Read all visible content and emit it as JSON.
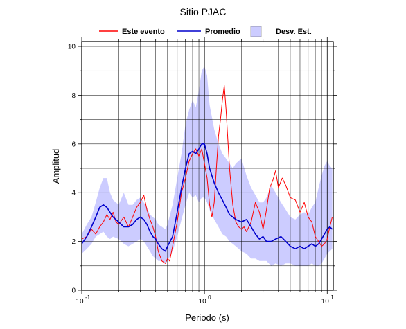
{
  "chart_data": {
    "type": "line",
    "title": "Sitio PJAC",
    "xlabel": "Periodo (s)",
    "ylabel": "Amplitud",
    "xscale": "log",
    "xlim": [
      0.1,
      11.2
    ],
    "ylim": [
      0,
      10.2
    ],
    "grid": true,
    "legend_position": "top",
    "x_ticks": [
      {
        "value": 0.1,
        "base": "10",
        "exp": "-1"
      },
      {
        "value": 1,
        "base": "10",
        "exp": "0"
      },
      {
        "value": 10,
        "base": "10",
        "exp": "1"
      }
    ],
    "y_ticks": [
      0,
      2,
      4,
      6,
      8,
      10
    ],
    "legend": [
      {
        "label": "Este evento",
        "kind": "line",
        "color": "#ff0000"
      },
      {
        "label": "Promedio",
        "kind": "line",
        "color": "#0000cc"
      },
      {
        "label": "Desv. Est.",
        "kind": "band",
        "color": "#ccccff"
      }
    ],
    "series": [
      {
        "name": "Este evento",
        "color": "#ff0000",
        "points": [
          [
            0.1,
            2.1
          ],
          [
            0.11,
            2.2
          ],
          [
            0.12,
            2.5
          ],
          [
            0.13,
            2.3
          ],
          [
            0.14,
            2.6
          ],
          [
            0.15,
            2.8
          ],
          [
            0.16,
            3.1
          ],
          [
            0.17,
            2.9
          ],
          [
            0.18,
            3.2
          ],
          [
            0.19,
            2.8
          ],
          [
            0.2,
            2.7
          ],
          [
            0.22,
            3.0
          ],
          [
            0.24,
            2.6
          ],
          [
            0.26,
            3.0
          ],
          [
            0.28,
            3.4
          ],
          [
            0.3,
            3.6
          ],
          [
            0.32,
            3.9
          ],
          [
            0.34,
            3.3
          ],
          [
            0.36,
            2.9
          ],
          [
            0.38,
            2.6
          ],
          [
            0.4,
            2.2
          ],
          [
            0.42,
            1.6
          ],
          [
            0.45,
            1.2
          ],
          [
            0.48,
            1.1
          ],
          [
            0.5,
            1.3
          ],
          [
            0.52,
            1.2
          ],
          [
            0.55,
            1.8
          ],
          [
            0.6,
            2.8
          ],
          [
            0.65,
            4.0
          ],
          [
            0.7,
            4.6
          ],
          [
            0.75,
            5.3
          ],
          [
            0.8,
            5.6
          ],
          [
            0.85,
            5.8
          ],
          [
            0.9,
            5.5
          ],
          [
            0.95,
            5.8
          ],
          [
            1.0,
            5.2
          ],
          [
            1.05,
            4.6
          ],
          [
            1.1,
            3.5
          ],
          [
            1.15,
            3.0
          ],
          [
            1.2,
            3.6
          ],
          [
            1.25,
            5.0
          ],
          [
            1.3,
            6.3
          ],
          [
            1.35,
            7.0
          ],
          [
            1.4,
            7.8
          ],
          [
            1.45,
            8.4
          ],
          [
            1.5,
            7.4
          ],
          [
            1.6,
            5.0
          ],
          [
            1.7,
            3.5
          ],
          [
            1.8,
            2.8
          ],
          [
            1.9,
            2.6
          ],
          [
            2.0,
            2.5
          ],
          [
            2.1,
            2.6
          ],
          [
            2.2,
            2.4
          ],
          [
            2.4,
            2.8
          ],
          [
            2.6,
            3.6
          ],
          [
            2.8,
            3.2
          ],
          [
            3.0,
            2.5
          ],
          [
            3.2,
            3.3
          ],
          [
            3.4,
            4.2
          ],
          [
            3.6,
            4.5
          ],
          [
            3.8,
            4.9
          ],
          [
            4.0,
            4.2
          ],
          [
            4.3,
            4.6
          ],
          [
            4.6,
            4.3
          ],
          [
            5.0,
            3.8
          ],
          [
            5.5,
            3.7
          ],
          [
            6.0,
            3.2
          ],
          [
            6.5,
            3.6
          ],
          [
            7.0,
            3.0
          ],
          [
            7.5,
            2.8
          ],
          [
            8.0,
            2.2
          ],
          [
            8.5,
            2.0
          ],
          [
            9.0,
            1.8
          ],
          [
            9.5,
            1.9
          ],
          [
            10.0,
            2.1
          ],
          [
            10.5,
            2.6
          ],
          [
            11.0,
            3.0
          ]
        ]
      },
      {
        "name": "Promedio",
        "color": "#0000cc",
        "points": [
          [
            0.1,
            1.9
          ],
          [
            0.11,
            2.2
          ],
          [
            0.12,
            2.6
          ],
          [
            0.13,
            3.0
          ],
          [
            0.14,
            3.4
          ],
          [
            0.15,
            3.5
          ],
          [
            0.16,
            3.4
          ],
          [
            0.17,
            3.2
          ],
          [
            0.18,
            3.0
          ],
          [
            0.2,
            2.8
          ],
          [
            0.22,
            2.6
          ],
          [
            0.24,
            2.6
          ],
          [
            0.26,
            2.7
          ],
          [
            0.28,
            2.9
          ],
          [
            0.3,
            3.0
          ],
          [
            0.32,
            2.9
          ],
          [
            0.34,
            2.7
          ],
          [
            0.36,
            2.4
          ],
          [
            0.38,
            2.2
          ],
          [
            0.4,
            2.1
          ],
          [
            0.42,
            1.9
          ],
          [
            0.45,
            1.7
          ],
          [
            0.48,
            1.6
          ],
          [
            0.5,
            1.8
          ],
          [
            0.55,
            2.2
          ],
          [
            0.6,
            3.2
          ],
          [
            0.65,
            4.2
          ],
          [
            0.7,
            5.0
          ],
          [
            0.75,
            5.6
          ],
          [
            0.8,
            5.7
          ],
          [
            0.85,
            5.6
          ],
          [
            0.9,
            5.8
          ],
          [
            0.95,
            6.0
          ],
          [
            1.0,
            6.0
          ],
          [
            1.05,
            5.6
          ],
          [
            1.1,
            5.0
          ],
          [
            1.2,
            4.4
          ],
          [
            1.3,
            4.0
          ],
          [
            1.4,
            3.7
          ],
          [
            1.5,
            3.4
          ],
          [
            1.6,
            3.1
          ],
          [
            1.7,
            3.0
          ],
          [
            1.8,
            2.9
          ],
          [
            2.0,
            2.8
          ],
          [
            2.2,
            2.9
          ],
          [
            2.4,
            2.6
          ],
          [
            2.6,
            2.3
          ],
          [
            2.8,
            2.1
          ],
          [
            3.0,
            2.2
          ],
          [
            3.2,
            2.0
          ],
          [
            3.5,
            2.0
          ],
          [
            3.8,
            2.1
          ],
          [
            4.2,
            2.2
          ],
          [
            4.6,
            2.0
          ],
          [
            5.0,
            1.8
          ],
          [
            5.5,
            1.7
          ],
          [
            6.0,
            1.8
          ],
          [
            6.5,
            1.7
          ],
          [
            7.0,
            1.8
          ],
          [
            7.5,
            1.9
          ],
          [
            8.0,
            1.8
          ],
          [
            8.5,
            1.9
          ],
          [
            9.0,
            2.1
          ],
          [
            9.5,
            2.3
          ],
          [
            10.0,
            2.5
          ],
          [
            10.5,
            2.6
          ],
          [
            11.0,
            2.5
          ]
        ]
      }
    ],
    "band": {
      "name": "Desv. Est.",
      "color": "#ccccff",
      "upper": [
        [
          0.1,
          2.3
        ],
        [
          0.11,
          2.7
        ],
        [
          0.12,
          3.0
        ],
        [
          0.13,
          3.6
        ],
        [
          0.14,
          4.2
        ],
        [
          0.15,
          4.6
        ],
        [
          0.16,
          4.6
        ],
        [
          0.17,
          4.0
        ],
        [
          0.18,
          3.7
        ],
        [
          0.2,
          3.5
        ],
        [
          0.22,
          4.0
        ],
        [
          0.24,
          3.5
        ],
        [
          0.26,
          3.5
        ],
        [
          0.28,
          3.7
        ],
        [
          0.3,
          3.8
        ],
        [
          0.32,
          3.6
        ],
        [
          0.34,
          3.4
        ],
        [
          0.36,
          3.1
        ],
        [
          0.38,
          3.0
        ],
        [
          0.4,
          2.9
        ],
        [
          0.42,
          2.7
        ],
        [
          0.45,
          2.6
        ],
        [
          0.48,
          2.5
        ],
        [
          0.5,
          2.7
        ],
        [
          0.55,
          3.5
        ],
        [
          0.6,
          4.6
        ],
        [
          0.65,
          5.6
        ],
        [
          0.7,
          6.8
        ],
        [
          0.75,
          7.4
        ],
        [
          0.8,
          7.8
        ],
        [
          0.85,
          7.5
        ],
        [
          0.9,
          8.2
        ],
        [
          0.95,
          9.0
        ],
        [
          1.0,
          9.2
        ],
        [
          1.05,
          8.8
        ],
        [
          1.1,
          7.6
        ],
        [
          1.2,
          6.6
        ],
        [
          1.3,
          6.0
        ],
        [
          1.4,
          5.6
        ],
        [
          1.5,
          5.4
        ],
        [
          1.6,
          5.2
        ],
        [
          1.7,
          5.0
        ],
        [
          1.8,
          5.2
        ],
        [
          2.0,
          5.4
        ],
        [
          2.2,
          4.7
        ],
        [
          2.4,
          4.2
        ],
        [
          2.6,
          3.9
        ],
        [
          2.8,
          3.6
        ],
        [
          3.0,
          3.6
        ],
        [
          3.2,
          3.8
        ],
        [
          3.5,
          4.3
        ],
        [
          3.8,
          4.0
        ],
        [
          4.2,
          3.6
        ],
        [
          4.6,
          3.3
        ],
        [
          5.0,
          3.0
        ],
        [
          5.5,
          2.9
        ],
        [
          6.0,
          3.1
        ],
        [
          6.5,
          3.2
        ],
        [
          7.0,
          3.1
        ],
        [
          7.5,
          3.4
        ],
        [
          8.0,
          3.6
        ],
        [
          8.5,
          4.2
        ],
        [
          9.0,
          4.7
        ],
        [
          9.5,
          5.1
        ],
        [
          10.0,
          5.3
        ],
        [
          10.5,
          5.1
        ],
        [
          11.0,
          5.0
        ]
      ],
      "lower": [
        [
          0.1,
          1.5
        ],
        [
          0.11,
          1.7
        ],
        [
          0.12,
          1.9
        ],
        [
          0.13,
          2.2
        ],
        [
          0.14,
          2.3
        ],
        [
          0.15,
          2.4
        ],
        [
          0.16,
          2.2
        ],
        [
          0.17,
          2.1
        ],
        [
          0.18,
          2.2
        ],
        [
          0.2,
          2.1
        ],
        [
          0.22,
          1.9
        ],
        [
          0.24,
          1.8
        ],
        [
          0.26,
          1.9
        ],
        [
          0.28,
          2.0
        ],
        [
          0.3,
          2.1
        ],
        [
          0.32,
          2.0
        ],
        [
          0.34,
          1.8
        ],
        [
          0.36,
          1.6
        ],
        [
          0.38,
          1.4
        ],
        [
          0.4,
          1.3
        ],
        [
          0.42,
          1.2
        ],
        [
          0.45,
          1.2
        ],
        [
          0.48,
          1.1
        ],
        [
          0.5,
          1.2
        ],
        [
          0.55,
          1.6
        ],
        [
          0.6,
          2.2
        ],
        [
          0.65,
          2.9
        ],
        [
          0.7,
          3.5
        ],
        [
          0.75,
          4.0
        ],
        [
          0.8,
          3.8
        ],
        [
          0.85,
          3.9
        ],
        [
          0.9,
          3.6
        ],
        [
          0.95,
          3.8
        ],
        [
          1.0,
          3.8
        ],
        [
          1.05,
          3.6
        ],
        [
          1.1,
          3.3
        ],
        [
          1.2,
          2.9
        ],
        [
          1.3,
          2.6
        ],
        [
          1.4,
          2.3
        ],
        [
          1.5,
          2.2
        ],
        [
          1.6,
          2.0
        ],
        [
          1.7,
          1.9
        ],
        [
          1.8,
          1.8
        ],
        [
          2.0,
          1.6
        ],
        [
          2.2,
          1.5
        ],
        [
          2.4,
          1.3
        ],
        [
          2.6,
          1.3
        ],
        [
          2.8,
          1.2
        ],
        [
          3.0,
          1.2
        ],
        [
          3.2,
          1.2
        ],
        [
          3.5,
          1.0
        ],
        [
          3.8,
          1.1
        ],
        [
          4.2,
          1.0
        ],
        [
          4.6,
          1.1
        ],
        [
          5.0,
          1.1
        ],
        [
          5.5,
          1.0
        ],
        [
          6.0,
          1.0
        ],
        [
          6.5,
          1.0
        ],
        [
          7.0,
          1.0
        ],
        [
          7.5,
          1.1
        ],
        [
          8.0,
          1.0
        ],
        [
          8.5,
          1.0
        ],
        [
          9.0,
          1.1
        ],
        [
          9.5,
          1.3
        ],
        [
          10.0,
          1.5
        ],
        [
          10.5,
          1.6
        ],
        [
          11.0,
          1.7
        ]
      ]
    }
  }
}
